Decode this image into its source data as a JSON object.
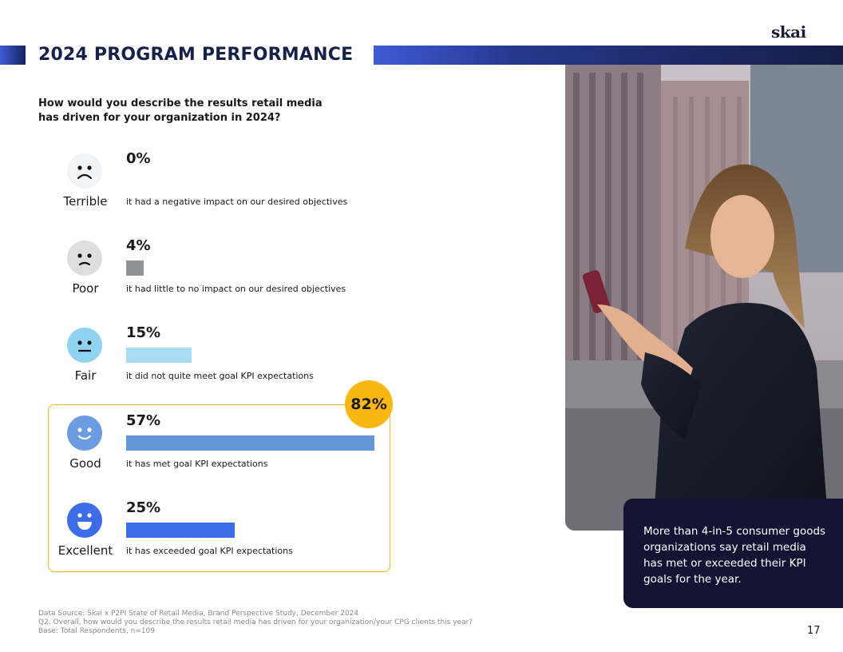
{
  "brand": {
    "logo_text": "skai"
  },
  "header": {
    "title": "2024 PROGRAM PERFORMANCE"
  },
  "question": "How would you describe the results retail media has driven for your organization in 2024?",
  "highlight": {
    "badge_value": "82%"
  },
  "chart_data": {
    "type": "bar",
    "orientation": "horizontal",
    "title": "How would you describe the results retail media has driven for your organization in 2024?",
    "categories": [
      "Terrible",
      "Poor",
      "Fair",
      "Good",
      "Excellent"
    ],
    "values": [
      0,
      4,
      15,
      57,
      25
    ],
    "value_labels": [
      "0%",
      "4%",
      "15%",
      "57%",
      "25%"
    ],
    "descriptions": [
      "it had a negative impact on our desired objectives",
      "it had little to no impact on our desired objectives",
      "it did not quite meet goal KPI expectations",
      "it has met goal KPI expectations",
      "it has exceeded goal KPI expectations"
    ],
    "colors": [
      "#9c9c9c",
      "#8e9393",
      "#a7dcf2",
      "#6497d8",
      "#3c6ce8"
    ],
    "xlim": [
      0,
      57
    ],
    "unit": "%",
    "highlighted_group": {
      "categories": [
        "Good",
        "Excellent"
      ],
      "total_label": "82%"
    }
  },
  "callout": {
    "text": "More than 4-in-5 consumer goods organizations say retail media has met or exceeded their KPI goals for the year."
  },
  "footer": {
    "source": "Data Source: Skai x P2PI State of Retail Media, Brand Perspective Study, December 2024",
    "q": "Q2. Overall, how would you describe the results retail media has driven for your organization/your CPG clients this year?",
    "base": "Base:  Total Respondents, n=109"
  },
  "page_number": "17",
  "colors": {
    "navy": "#16214a",
    "gold": "#f9b712",
    "callout_bg": "#121433"
  }
}
